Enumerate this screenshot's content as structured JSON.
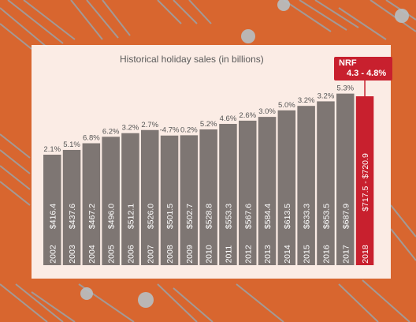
{
  "chart_data": {
    "type": "bar",
    "title": "Historical holiday sales (in billions)",
    "categories": [
      "2002",
      "2003",
      "2004",
      "2005",
      "2006",
      "2007",
      "2008",
      "2009",
      "2010",
      "2011",
      "2012",
      "2013",
      "2014",
      "2015",
      "2016",
      "2017",
      "2018"
    ],
    "values": [
      416.4,
      437.6,
      467.2,
      496.0,
      512.1,
      526.0,
      501.5,
      502.7,
      528.8,
      553.3,
      567.6,
      584.4,
      613.5,
      633.3,
      653.5,
      687.9,
      720.9
    ],
    "value_labels": [
      "$416.4",
      "$437.6",
      "$467.2",
      "$496.0",
      "$512.1",
      "$526.0",
      "$501.5",
      "$502.7",
      "$528.8",
      "$553.3",
      "$567.6",
      "$584.4",
      "$613.5",
      "$633.3",
      "$653.5",
      "$687.9",
      "$717.5 - $720.9"
    ],
    "growth_labels": [
      "2.1%",
      "5.1%",
      "6.8%",
      "6.2%",
      "3.2%",
      "2.7%",
      "-4.7%",
      "0.2%",
      "5.2%",
      "4.6%",
      "2.6%",
      "3.0%",
      "5.0%",
      "3.2%",
      "3.2%",
      "5.3%",
      ""
    ],
    "forecast": {
      "category": "2018",
      "label_line1": "NRF",
      "label_line2": "4.3 - 4.8%",
      "low": 717.5,
      "high": 720.9
    },
    "colors": {
      "bar": "#7e7673",
      "forecast_bar": "#c8202e",
      "text": "#ffffff",
      "growth_text": "#555555"
    },
    "grid": false,
    "legend": "none"
  }
}
